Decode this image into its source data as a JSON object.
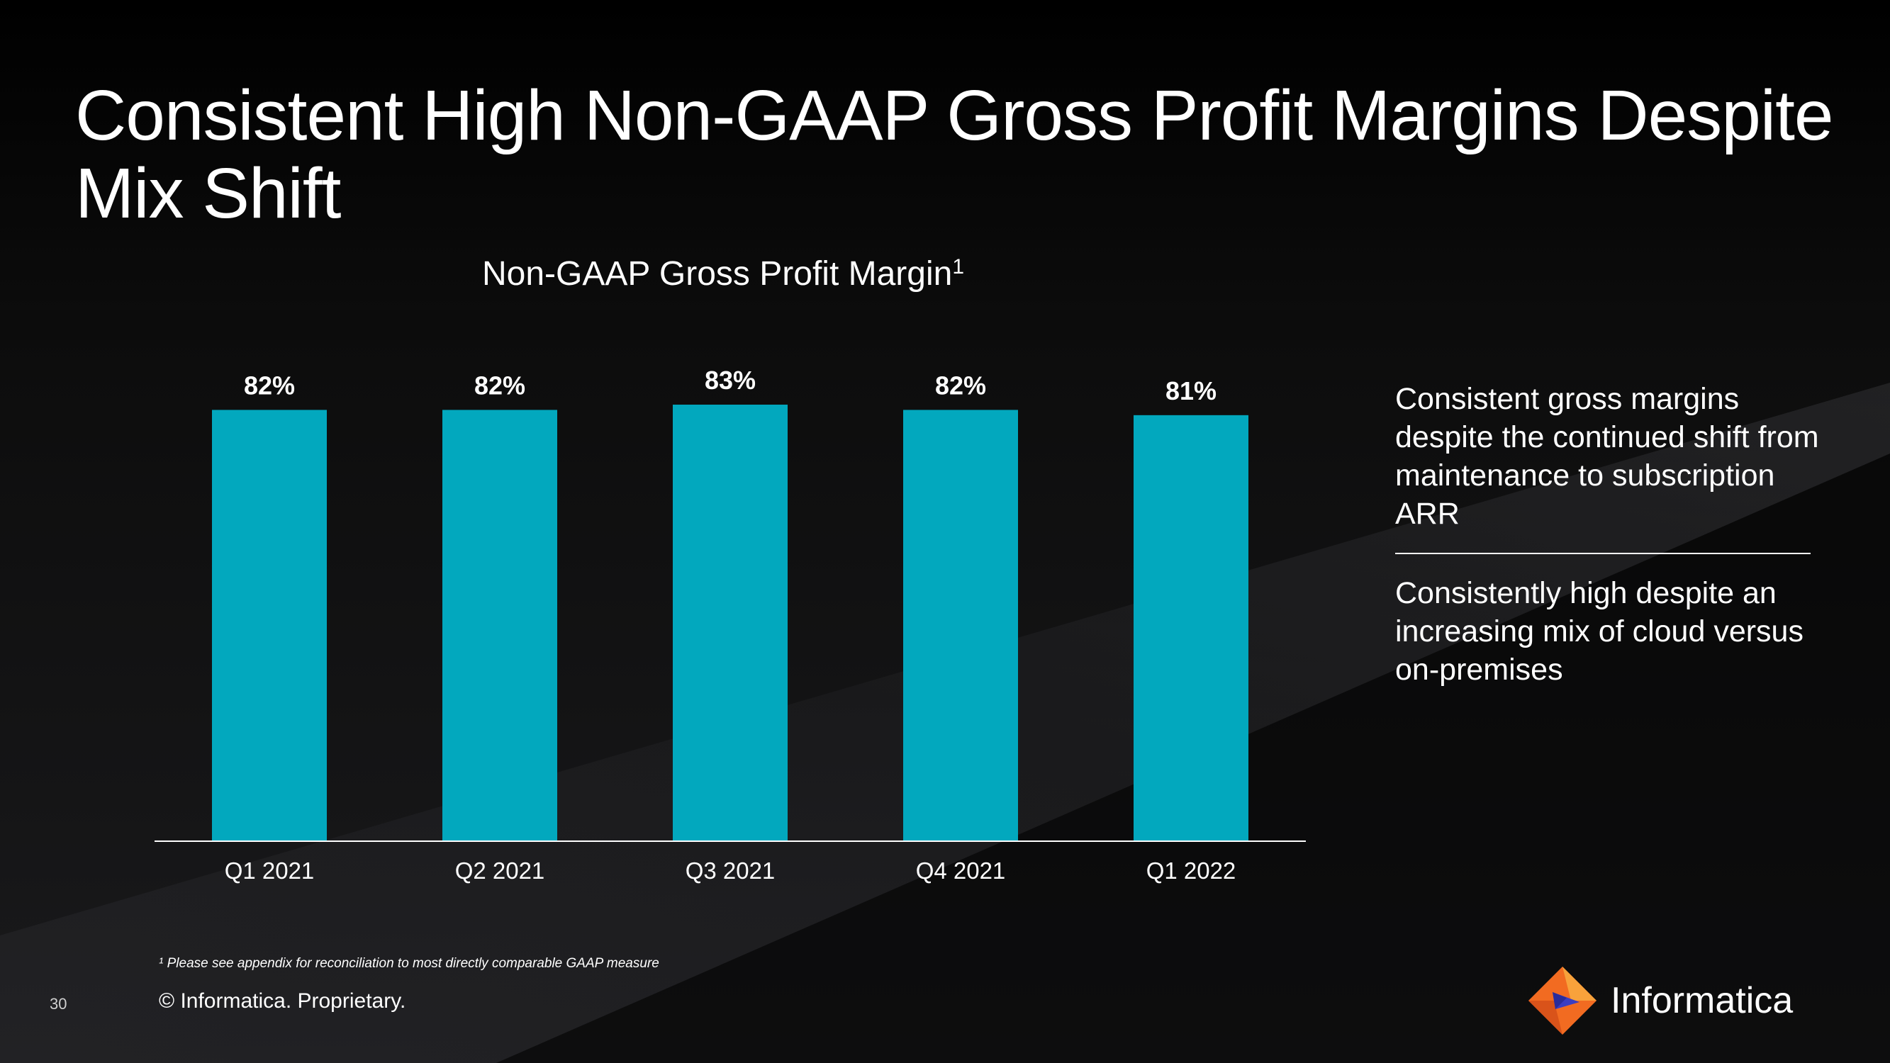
{
  "slide": {
    "title": "Consistent High Non-GAAP Gross Profit Margins Despite Mix Shift",
    "page_number": "30",
    "footnote": "¹ Please see appendix for reconciliation to most directly comparable GAAP measure",
    "copyright": "© Informatica. Proprietary.",
    "brand_name": "Informatica",
    "side_points": [
      "Consistent gross margins despite the continued shift from maintenance to subscription ARR",
      "Consistently high despite an increasing mix of cloud versus on-premises"
    ]
  },
  "colors": {
    "bar": "#02A8BE",
    "background": "#0b0b0b",
    "logo_orange": "#F26B21",
    "logo_blue": "#3A3DC2"
  },
  "chart_data": {
    "type": "bar",
    "title": "Non-GAAP Gross Profit Margin",
    "title_superscript": "1",
    "categories": [
      "Q1 2021",
      "Q2 2021",
      "Q3 2021",
      "Q4 2021",
      "Q1 2022"
    ],
    "values": [
      82,
      82,
      83,
      82,
      81
    ],
    "value_labels": [
      "82%",
      "82%",
      "83%",
      "82%",
      "81%"
    ],
    "unit": "%",
    "ylim": [
      0,
      83
    ],
    "grid": false,
    "xlabel": "",
    "ylabel": ""
  }
}
